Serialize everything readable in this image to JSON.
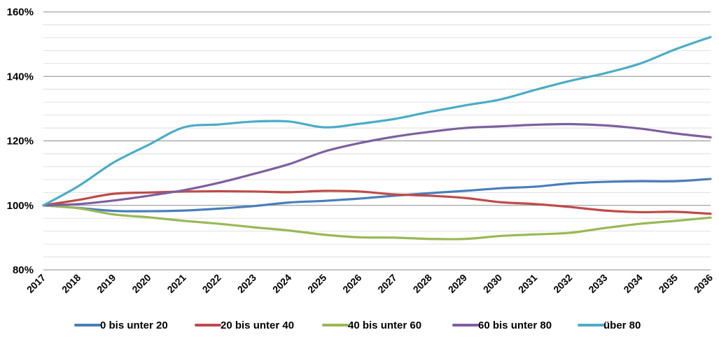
{
  "chart_data": {
    "type": "line",
    "title": "",
    "xlabel": "",
    "ylabel": "",
    "x": [
      "2017",
      "2018",
      "2019",
      "2020",
      "2021",
      "2022",
      "2023",
      "2024",
      "2025",
      "2026",
      "2027",
      "2028",
      "2029",
      "2030",
      "2031",
      "2032",
      "2033",
      "2034",
      "2035",
      "2036"
    ],
    "ylim": [
      80,
      160
    ],
    "y_ticks": [
      80,
      100,
      120,
      140,
      160
    ],
    "y_tick_labels": [
      "80%",
      "100%",
      "120%",
      "140%",
      "160%"
    ],
    "grid": true,
    "legend_position": "bottom",
    "series": [
      {
        "name": "0 bis unter 20",
        "color": "#4a7ebb",
        "values": [
          100,
          99.2,
          98.3,
          98.2,
          98.4,
          99.0,
          99.8,
          100.9,
          101.4,
          102.1,
          103.0,
          103.8,
          104.5,
          105.3,
          105.8,
          106.8,
          107.3,
          107.5,
          107.5,
          108.2
        ]
      },
      {
        "name": "20 bis unter 40",
        "color": "#be4b48",
        "values": [
          100,
          101.7,
          103.6,
          104.0,
          104.3,
          104.4,
          104.3,
          104.1,
          104.5,
          104.3,
          103.4,
          103.0,
          102.3,
          101.0,
          100.4,
          99.5,
          98.4,
          97.9,
          98.0,
          97.4
        ]
      },
      {
        "name": "40 bis unter 60",
        "color": "#98b954",
        "values": [
          100,
          99.1,
          97.2,
          96.3,
          95.2,
          94.3,
          93.2,
          92.2,
          90.9,
          90.1,
          90.0,
          89.6,
          89.6,
          90.5,
          91.0,
          91.5,
          93.0,
          94.3,
          95.2,
          96.2
        ]
      },
      {
        "name": "60 bis unter 80",
        "color": "#7d5fa0",
        "values": [
          100,
          100.4,
          101.5,
          103.0,
          104.7,
          107.0,
          109.8,
          112.8,
          116.7,
          119.3,
          121.3,
          122.8,
          124.0,
          124.5,
          125.0,
          125.2,
          124.8,
          123.8,
          122.3,
          121.1
        ]
      },
      {
        "name": "über 80",
        "color": "#4bacc6",
        "values": [
          100,
          106.0,
          113.3,
          118.8,
          124.2,
          125.1,
          126.0,
          126.0,
          124.2,
          125.3,
          126.8,
          129.0,
          131.0,
          132.8,
          135.8,
          138.6,
          141.0,
          144.0,
          148.4,
          152.2
        ]
      }
    ]
  }
}
